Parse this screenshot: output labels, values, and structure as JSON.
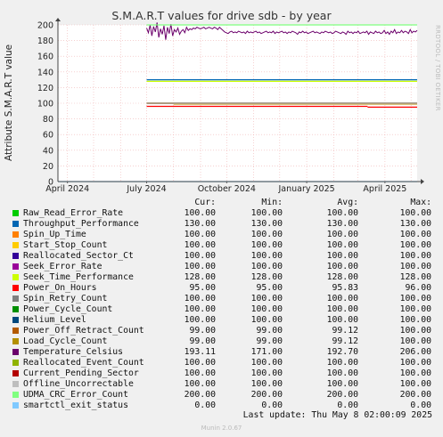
{
  "page": {
    "title": "S.M.A.R.T values for drive sdb - by year",
    "side_label": "RRDTOOL / TOBI OETIKER",
    "last_update": "Last update:  Thu May  8 02:00:09 2025",
    "footer": "Munin 2.0.67"
  },
  "legend_headers": {
    "cur": "Cur:",
    "min": "Min:",
    "avg": "Avg:",
    "max": "Max:"
  },
  "chart_data": {
    "type": "line",
    "title": "S.M.A.R.T values for drive sdb - by year",
    "xlabel": "",
    "ylabel": "Attribute S.M.A.R.T value",
    "ylim": [
      0,
      200
    ],
    "yticks": [
      0,
      20,
      40,
      60,
      80,
      100,
      120,
      140,
      160,
      180,
      200
    ],
    "xlim": [
      "2024-03-21",
      "2025-05-08"
    ],
    "xticks": [
      {
        "date": "2024-04-01",
        "label": "April 2024"
      },
      {
        "date": "2024-07-01",
        "label": "July 2024"
      },
      {
        "date": "2024-10-01",
        "label": "October 2024"
      },
      {
        "date": "2025-01-01",
        "label": "January 2025"
      },
      {
        "date": "2025-04-01",
        "label": "April 2025"
      }
    ],
    "data_start": "2024-07-01",
    "grid": true,
    "legend_position": "bottom",
    "series": [
      {
        "name": "Raw_Read_Error_Rate",
        "color": "#00cc00",
        "cur": "100.00",
        "min": "100.00",
        "avg": "100.00",
        "max": "100.00",
        "segments": [
          {
            "from": "2024-07-01",
            "to": "2025-05-08",
            "value": 100
          }
        ]
      },
      {
        "name": "Throughput_Performance",
        "color": "#0066b3",
        "cur": "130.00",
        "min": "130.00",
        "avg": "130.00",
        "max": "130.00",
        "segments": [
          {
            "from": "2024-07-01",
            "to": "2025-05-08",
            "value": 130
          }
        ]
      },
      {
        "name": "Spin_Up_Time",
        "color": "#ff8000",
        "cur": "100.00",
        "min": "100.00",
        "avg": "100.00",
        "max": "100.00",
        "segments": [
          {
            "from": "2024-07-01",
            "to": "2025-05-08",
            "value": 100
          }
        ]
      },
      {
        "name": "Start_Stop_Count",
        "color": "#ffcc00",
        "cur": "100.00",
        "min": "100.00",
        "avg": "100.00",
        "max": "100.00",
        "segments": [
          {
            "from": "2024-07-01",
            "to": "2025-05-08",
            "value": 100
          }
        ]
      },
      {
        "name": "Reallocated_Sector_Ct",
        "color": "#330099",
        "cur": "100.00",
        "min": "100.00",
        "avg": "100.00",
        "max": "100.00",
        "segments": [
          {
            "from": "2024-07-01",
            "to": "2025-05-08",
            "value": 100
          }
        ]
      },
      {
        "name": "Seek_Error_Rate",
        "color": "#990099",
        "cur": "100.00",
        "min": "100.00",
        "avg": "100.00",
        "max": "100.00",
        "segments": [
          {
            "from": "2024-07-01",
            "to": "2025-05-08",
            "value": 100
          }
        ]
      },
      {
        "name": "Seek_Time_Performance",
        "color": "#ccff00",
        "cur": "128.00",
        "min": "128.00",
        "avg": "128.00",
        "max": "128.00",
        "segments": [
          {
            "from": "2024-07-01",
            "to": "2025-05-08",
            "value": 128
          }
        ]
      },
      {
        "name": "Power_On_Hours",
        "color": "#ff0000",
        "cur": "95.00",
        "min": "95.00",
        "avg": "95.83",
        "max": "96.00",
        "segments": [
          {
            "from": "2024-07-01",
            "to": "2025-03-12",
            "value": 96
          },
          {
            "from": "2025-03-12",
            "to": "2025-05-08",
            "value": 95
          }
        ]
      },
      {
        "name": "Spin_Retry_Count",
        "color": "#808080",
        "cur": "100.00",
        "min": "100.00",
        "avg": "100.00",
        "max": "100.00",
        "segments": [
          {
            "from": "2024-07-01",
            "to": "2025-05-08",
            "value": 100
          }
        ]
      },
      {
        "name": "Power_Cycle_Count",
        "color": "#008f00",
        "cur": "100.00",
        "min": "100.00",
        "avg": "100.00",
        "max": "100.00",
        "segments": [
          {
            "from": "2024-07-01",
            "to": "2025-05-08",
            "value": 100
          }
        ]
      },
      {
        "name": "Helium_Level",
        "color": "#00487d",
        "cur": "100.00",
        "min": "100.00",
        "avg": "100.00",
        "max": "100.00",
        "segments": [
          {
            "from": "2024-07-01",
            "to": "2025-05-08",
            "value": 100
          }
        ]
      },
      {
        "name": "Power_Off_Retract_Count",
        "color": "#b35a00",
        "cur": "99.00",
        "min": "99.00",
        "avg": "99.12",
        "max": "100.00",
        "segments": [
          {
            "from": "2024-07-01",
            "to": "2024-08-01",
            "value": 100
          },
          {
            "from": "2024-08-01",
            "to": "2025-05-08",
            "value": 99
          }
        ]
      },
      {
        "name": "Load_Cycle_Count",
        "color": "#b38f00",
        "cur": "99.00",
        "min": "99.00",
        "avg": "99.12",
        "max": "100.00",
        "segments": [
          {
            "from": "2024-07-01",
            "to": "2024-08-01",
            "value": 100
          },
          {
            "from": "2024-08-01",
            "to": "2025-05-08",
            "value": 99
          }
        ]
      },
      {
        "name": "Temperature_Celsius",
        "color": "#6b006b",
        "cur": "193.11",
        "min": "171.00",
        "avg": "192.70",
        "max": "206.00",
        "segments": [],
        "noisy": {
          "from": "2024-07-01",
          "to": "2025-05-08",
          "values": [
            196,
            190,
            200,
            186,
            198,
            191,
            203,
            184,
            195,
            188,
            199,
            181,
            197,
            189,
            201,
            186,
            194,
            191,
            196,
            188,
            192,
            194,
            190,
            197,
            193,
            195,
            194,
            196,
            195,
            197,
            196,
            195,
            196,
            197,
            195,
            196,
            197,
            196,
            195,
            197,
            196,
            194,
            197,
            195,
            193,
            191,
            190,
            189,
            191,
            192,
            190,
            191,
            190,
            192,
            191,
            190,
            191,
            189,
            192,
            190,
            191,
            190,
            191,
            192,
            190,
            191,
            189,
            190,
            191,
            192,
            190,
            191,
            190,
            192,
            189,
            191,
            190,
            191,
            192,
            190,
            191,
            189,
            191,
            190,
            192,
            191,
            190,
            188,
            191,
            190,
            192,
            190,
            191,
            189,
            190,
            191,
            192,
            190,
            191,
            190,
            189,
            191,
            190,
            192,
            191,
            190,
            191,
            189,
            190,
            192,
            191,
            190,
            189,
            191,
            190,
            188,
            192,
            190,
            191,
            189,
            191,
            190,
            192,
            189,
            190,
            191,
            190,
            192,
            188,
            191,
            190,
            189,
            192,
            190,
            191,
            189,
            190,
            193,
            189,
            191,
            188,
            192,
            190,
            194,
            189,
            191,
            190,
            193,
            190,
            192,
            191,
            189,
            194,
            190,
            192,
            191,
            193
          ]
        }
      },
      {
        "name": "Reallocated_Event_Count",
        "color": "#8fb300",
        "cur": "100.00",
        "min": "100.00",
        "avg": "100.00",
        "max": "100.00",
        "segments": [
          {
            "from": "2024-07-01",
            "to": "2025-05-08",
            "value": 100
          }
        ]
      },
      {
        "name": "Current_Pending_Sector",
        "color": "#b30000",
        "cur": "100.00",
        "min": "100.00",
        "avg": "100.00",
        "max": "100.00",
        "segments": [
          {
            "from": "2024-07-01",
            "to": "2025-05-08",
            "value": 100
          }
        ]
      },
      {
        "name": "Offline_Uncorrectable",
        "color": "#bebebe",
        "cur": "100.00",
        "min": "100.00",
        "avg": "100.00",
        "max": "100.00",
        "segments": [
          {
            "from": "2024-07-01",
            "to": "2025-05-08",
            "value": 100
          }
        ]
      },
      {
        "name": "UDMA_CRC_Error_Count",
        "color": "#80ff80",
        "cur": "200.00",
        "min": "200.00",
        "avg": "200.00",
        "max": "200.00",
        "segments": [
          {
            "from": "2024-07-01",
            "to": "2025-05-08",
            "value": 200
          }
        ]
      },
      {
        "name": "smartctl_exit_status",
        "color": "#80c9ff",
        "cur": "0.00",
        "min": "0.00",
        "avg": "0.00",
        "max": "0.00",
        "segments": [
          {
            "from": "2024-03-21",
            "to": "2025-05-08",
            "value": 0
          }
        ]
      }
    ]
  }
}
